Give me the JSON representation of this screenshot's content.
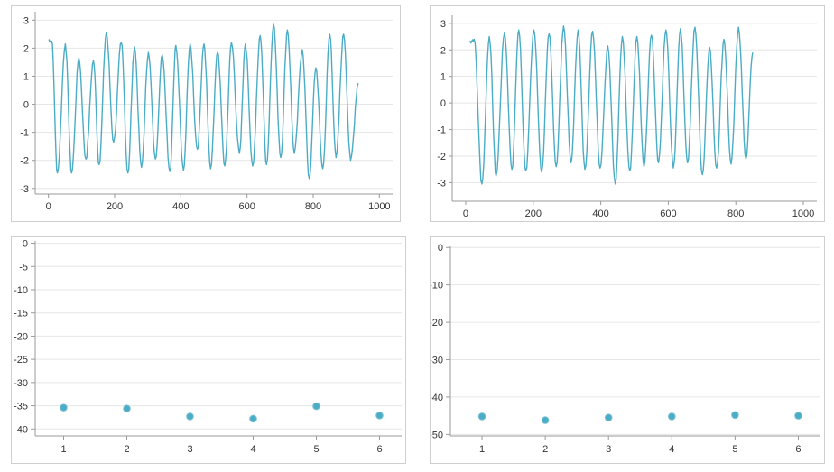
{
  "colors": {
    "series": "#4bacc6",
    "grid": "#e6e6e6",
    "axis": "#9a9a9a",
    "text": "#333333"
  },
  "chart_data": [
    {
      "type": "line",
      "xlim": [
        -40,
        1040
      ],
      "ylim": [
        -3.2,
        3.3
      ],
      "xticks": [
        0,
        200,
        400,
        600,
        800,
        1000
      ],
      "yticks": [
        -3,
        -2,
        -1,
        0,
        1,
        2,
        3
      ],
      "grid": true,
      "series": [
        {
          "cycles": [
            [
              10,
              2.25
            ],
            [
              27,
              -2.45
            ],
            [
              51,
              2.15
            ],
            [
              70,
              -2.45
            ],
            [
              92,
              1.65
            ],
            [
              113,
              -1.95
            ],
            [
              136,
              1.55
            ],
            [
              153,
              -2.15
            ],
            [
              175,
              2.55
            ],
            [
              197,
              -1.35
            ],
            [
              220,
              2.2
            ],
            [
              240,
              -2.45
            ],
            [
              260,
              2.05
            ],
            [
              281,
              -2.25
            ],
            [
              302,
              1.85
            ],
            [
              323,
              -1.95
            ],
            [
              344,
              1.75
            ],
            [
              367,
              -2.4
            ],
            [
              385,
              2.1
            ],
            [
              408,
              -2.35
            ],
            [
              428,
              2.15
            ],
            [
              450,
              -1.6
            ],
            [
              470,
              2.15
            ],
            [
              490,
              -2.3
            ],
            [
              511,
              1.85
            ],
            [
              533,
              -2.2
            ],
            [
              553,
              2.2
            ],
            [
              577,
              -1.75
            ],
            [
              595,
              2.15
            ],
            [
              617,
              -2.2
            ],
            [
              640,
              2.45
            ],
            [
              659,
              -2.15
            ],
            [
              680,
              2.85
            ],
            [
              702,
              -1.9
            ],
            [
              722,
              2.65
            ],
            [
              743,
              -1.75
            ],
            [
              767,
              1.95
            ],
            [
              788,
              -2.65
            ],
            [
              808,
              1.3
            ],
            [
              829,
              -2.3
            ],
            [
              850,
              2.5
            ],
            [
              869,
              -1.9
            ],
            [
              892,
              2.5
            ],
            [
              913,
              -2.0
            ]
          ],
          "start": [
            0,
            2.3
          ],
          "end": [
            936,
            0.75
          ]
        }
      ]
    },
    {
      "type": "line",
      "xlim": [
        -40,
        1040
      ],
      "ylim": [
        -3.7,
        3.3
      ],
      "xticks": [
        0,
        200,
        400,
        600,
        800,
        1000
      ],
      "yticks": [
        -3,
        -2,
        -1,
        0,
        1,
        2,
        3
      ],
      "grid": true,
      "series": [
        {
          "cycles": [
            [
              25,
              2.4
            ],
            [
              48,
              -3.05
            ],
            [
              70,
              2.5
            ],
            [
              90,
              -2.75
            ],
            [
              115,
              2.65
            ],
            [
              137,
              -2.5
            ],
            [
              157,
              2.75
            ],
            [
              178,
              -2.55
            ],
            [
              202,
              2.75
            ],
            [
              225,
              -2.6
            ],
            [
              247,
              2.6
            ],
            [
              268,
              -2.4
            ],
            [
              290,
              2.9
            ],
            [
              312,
              -2.25
            ],
            [
              333,
              2.75
            ],
            [
              353,
              -2.5
            ],
            [
              376,
              2.7
            ],
            [
              398,
              -2.45
            ],
            [
              421,
              2.15
            ],
            [
              443,
              -3.05
            ],
            [
              464,
              2.5
            ],
            [
              486,
              -2.55
            ],
            [
              507,
              2.5
            ],
            [
              528,
              -2.4
            ],
            [
              550,
              2.55
            ],
            [
              571,
              -2.25
            ],
            [
              593,
              2.75
            ],
            [
              615,
              -2.45
            ],
            [
              636,
              2.8
            ],
            [
              657,
              -2.25
            ],
            [
              679,
              2.85
            ],
            [
              701,
              -2.7
            ],
            [
              722,
              2.1
            ],
            [
              743,
              -2.45
            ],
            [
              765,
              2.4
            ],
            [
              786,
              -2.3
            ],
            [
              808,
              2.85
            ],
            [
              830,
              -2.1
            ]
          ],
          "start": [
            10,
            2.3
          ],
          "end": [
            850,
            1.9
          ]
        }
      ]
    },
    {
      "type": "scatter",
      "xlim": [
        0.55,
        6.35
      ],
      "ylim": [
        -41.5,
        0.5
      ],
      "xticks": [
        1,
        2,
        3,
        4,
        5,
        6
      ],
      "yticks": [
        0,
        -5,
        -10,
        -15,
        -20,
        -25,
        -30,
        -35,
        -40
      ],
      "grid": true,
      "x": [
        1,
        2,
        3,
        4,
        5,
        6
      ],
      "y": [
        -35.4,
        -35.6,
        -37.3,
        -37.8,
        -35.1,
        -37.1
      ]
    },
    {
      "type": "scatter",
      "xlim": [
        0.5,
        6.35
      ],
      "ylim": [
        -50.4,
        0.3
      ],
      "xticks": [
        1,
        2,
        3,
        4,
        5,
        6
      ],
      "yticks": [
        0,
        -10,
        -20,
        -30,
        -40,
        -50
      ],
      "grid": true,
      "x": [
        1,
        2,
        3,
        4,
        5,
        6
      ],
      "y": [
        -45.2,
        -46.2,
        -45.5,
        -45.2,
        -44.8,
        -45.0
      ]
    }
  ]
}
